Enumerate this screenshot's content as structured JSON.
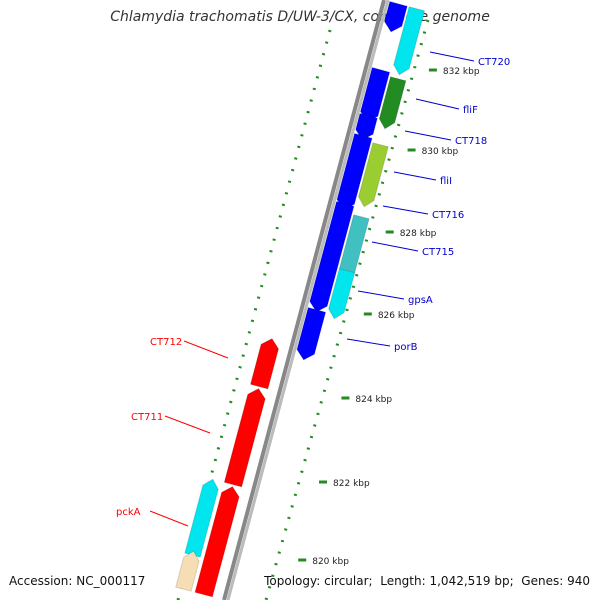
{
  "map": {
    "title": "Chlamydia trachomatis D/UW-3/CX, complete genome",
    "accession_label": "Accession:",
    "accession": "NC_000117",
    "topology_label": "Topology:",
    "topology": "circular",
    "length_label": "Length:",
    "length": "1,042,519 bp",
    "genes_label": "Genes:",
    "genes_count": "940"
  },
  "scale_ticks": [
    {
      "label": "820 kbp"
    },
    {
      "label": "822 kbp"
    },
    {
      "label": "824 kbp"
    },
    {
      "label": "826 kbp"
    },
    {
      "label": "828 kbp"
    },
    {
      "label": "830 kbp"
    },
    {
      "label": "832 kbp"
    }
  ],
  "genes": [
    {
      "name": "CT720",
      "strand": "forward",
      "color": "#00e5ee",
      "labeled": true
    },
    {
      "name": "fliF",
      "strand": "forward",
      "color": "#228b22",
      "labeled": true
    },
    {
      "name": "CT718",
      "strand": "forward",
      "color": "#0000ff",
      "labeled": true
    },
    {
      "name": "fliI",
      "strand": "forward",
      "color": "#9acd32",
      "labeled": true
    },
    {
      "name": "CT716",
      "strand": "forward",
      "color": "#0000ff",
      "labeled": true
    },
    {
      "name": "CT715",
      "strand": "forward",
      "color": "#40c0c0",
      "labeled": true
    },
    {
      "name": "gpsA",
      "strand": "forward",
      "color": "#00e5ee",
      "labeled": true
    },
    {
      "name": "porB",
      "strand": "forward",
      "color": "#0000ff",
      "labeled": true
    },
    {
      "name": "CT712",
      "strand": "reverse",
      "color": "#ff0000",
      "labeled": true
    },
    {
      "name": "CT711",
      "strand": "reverse",
      "color": "#ff0000",
      "labeled": true
    },
    {
      "name": "pckA",
      "strand": "reverse",
      "color": "#00e5ee",
      "labeled": true
    }
  ],
  "colors": {
    "forward_label": "#0000cc",
    "reverse_label": "#ff0000",
    "backbone": "#888888",
    "gc_dots": "#228b22"
  }
}
